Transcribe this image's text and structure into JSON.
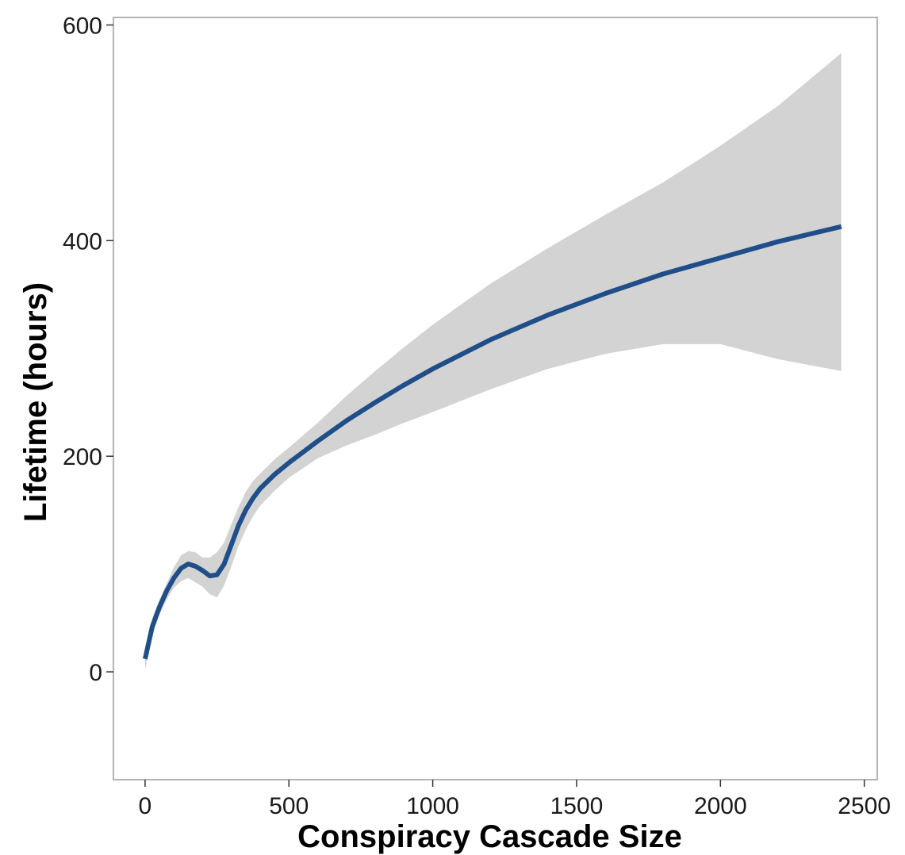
{
  "chart_data": {
    "type": "line",
    "xlabel": "Conspiracy Cascade Size",
    "ylabel": "Lifetime (hours)",
    "xlim": [
      -110,
      2545
    ],
    "ylim": [
      -100,
      607
    ],
    "x_ticks": [
      0,
      500,
      1000,
      1500,
      2000,
      2500
    ],
    "y_ticks": [
      0,
      200,
      400,
      600
    ],
    "x_tick_labels": [
      "0",
      "500",
      "1000",
      "1500",
      "2000",
      "2500"
    ],
    "y_tick_labels": [
      "0",
      "200",
      "400",
      "600"
    ],
    "grid": false,
    "legend": "none",
    "series": [
      {
        "role": "smoothed-mean",
        "color": "#1f4e89",
        "x": [
          0,
          25,
          50,
          75,
          100,
          125,
          150,
          175,
          200,
          225,
          250,
          275,
          300,
          325,
          350,
          375,
          400,
          450,
          500,
          600,
          700,
          800,
          900,
          1000,
          1200,
          1400,
          1600,
          1800,
          2000,
          2200,
          2420
        ],
        "y": [
          12,
          42,
          60,
          75,
          87,
          96,
          100,
          98,
          94,
          89,
          90,
          100,
          118,
          136,
          150,
          161,
          170,
          183,
          194,
          214,
          233,
          250,
          266,
          281,
          308,
          331,
          351,
          369,
          384,
          399,
          413
        ]
      }
    ],
    "confidence_band": {
      "color": "#d3d3d3",
      "x": [
        0,
        25,
        50,
        75,
        100,
        125,
        150,
        175,
        200,
        225,
        250,
        275,
        300,
        325,
        350,
        375,
        400,
        450,
        500,
        600,
        700,
        800,
        900,
        1000,
        1200,
        1400,
        1600,
        1800,
        2000,
        2200,
        2420
      ],
      "upper": [
        22,
        50,
        67,
        82,
        97,
        108,
        112,
        111,
        106,
        106,
        111,
        120,
        137,
        153,
        167,
        177,
        184,
        197,
        208,
        231,
        256,
        279,
        301,
        322,
        360,
        393,
        424,
        454,
        488,
        525,
        574
      ],
      "lower": [
        2,
        34,
        53,
        67,
        78,
        84,
        87,
        83,
        79,
        72,
        69,
        80,
        98,
        117,
        132,
        144,
        154,
        168,
        180,
        198,
        210,
        220,
        231,
        241,
        262,
        281,
        295,
        304,
        304,
        290,
        279
      ]
    }
  }
}
